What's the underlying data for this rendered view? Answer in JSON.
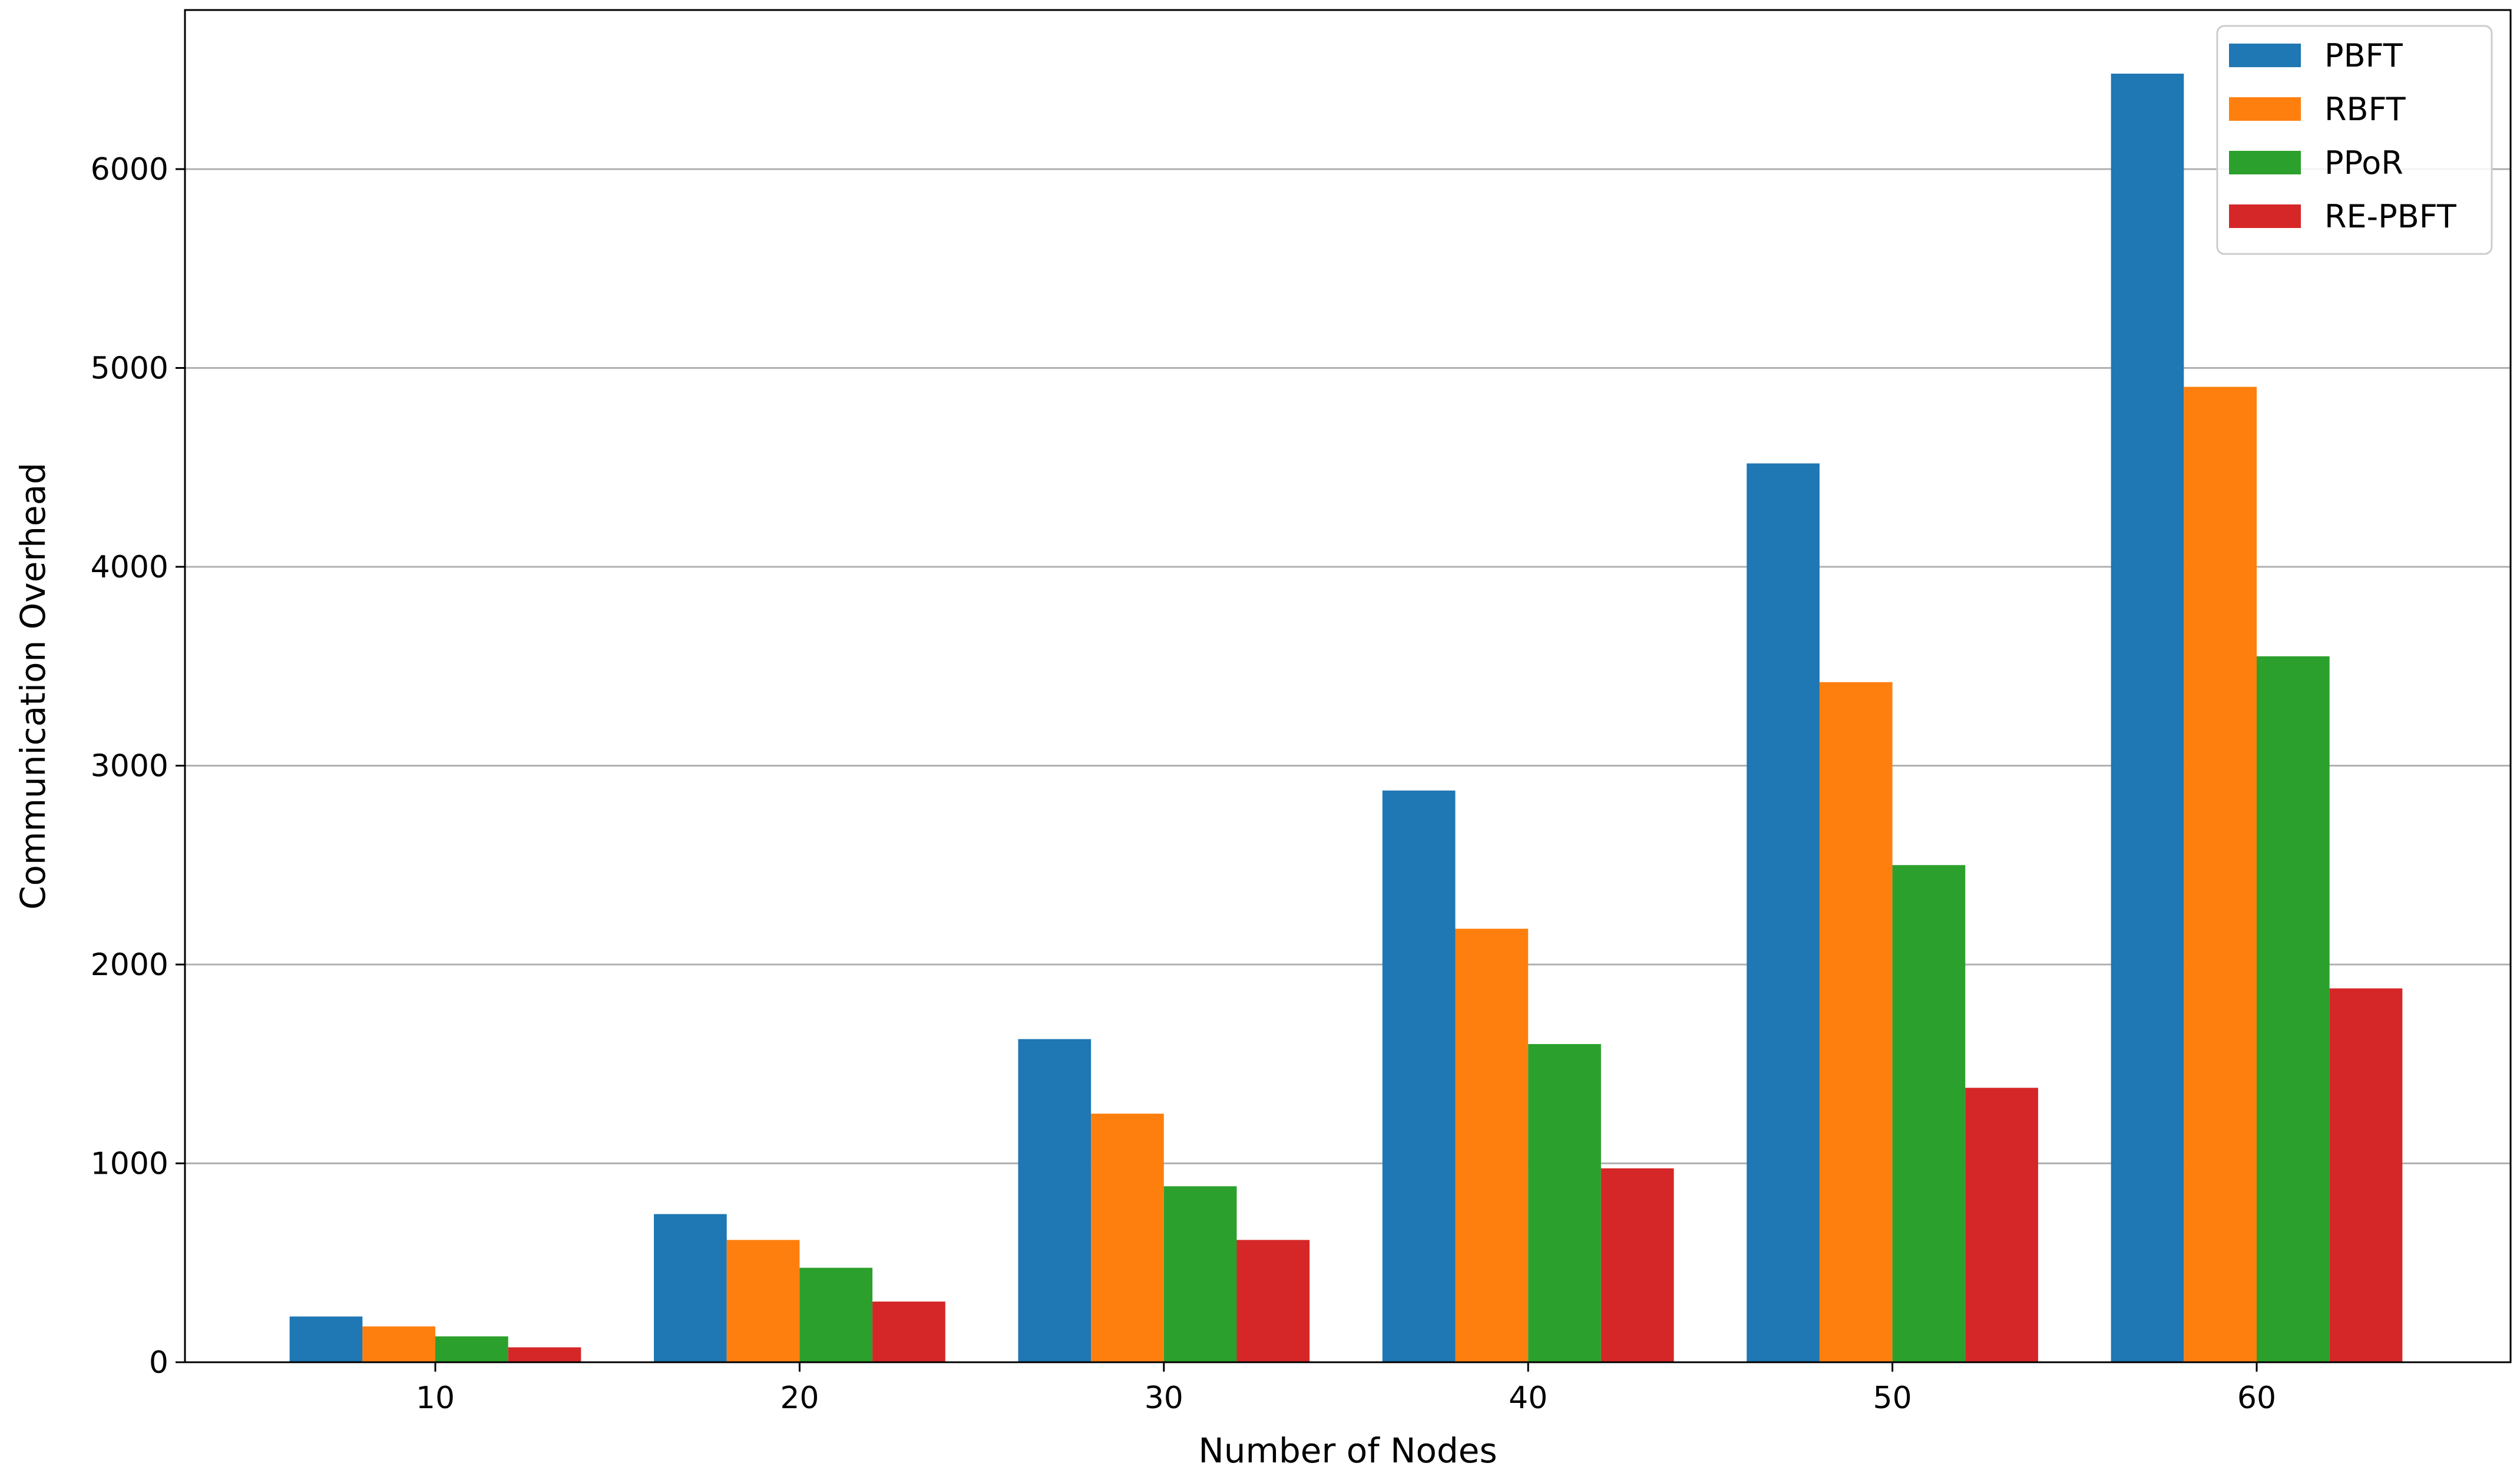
{
  "chart_data": {
    "type": "bar",
    "categories": [
      "10",
      "20",
      "30",
      "40",
      "50",
      "60"
    ],
    "series": [
      {
        "name": "PBFT",
        "color": "#1f77b4",
        "values": [
          230,
          745,
          1625,
          2875,
          4520,
          6480
        ]
      },
      {
        "name": "RBFT",
        "color": "#ff7f0e",
        "values": [
          180,
          615,
          1250,
          2180,
          3420,
          4905
        ]
      },
      {
        "name": "PPoR",
        "color": "#2ca02c",
        "values": [
          130,
          475,
          885,
          1600,
          2500,
          3550
        ]
      },
      {
        "name": "RE-PBFT",
        "color": "#d62728",
        "values": [
          75,
          305,
          615,
          975,
          1380,
          1880
        ]
      }
    ],
    "title": "",
    "xlabel": "Number of Nodes",
    "ylabel": "Communication Overhead",
    "ylim": [
      0,
      6800
    ],
    "yticks": [
      0,
      1000,
      2000,
      3000,
      4000,
      5000,
      6000
    ],
    "grid": "horizontal",
    "legend_position": "top-right"
  }
}
